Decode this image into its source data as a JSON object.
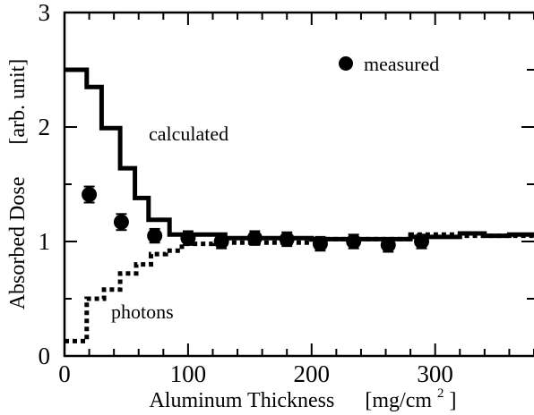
{
  "chart_data": {
    "type": "line",
    "xlabel": "Aluminum Thickness",
    "xunit_text": "[mg/cm",
    "xunit_sup": "2",
    "xunit_close": "]",
    "ylabel": "Absorbed Dose",
    "yunit": "[arb. unit]",
    "xlim": [
      0,
      380
    ],
    "ylim": [
      0,
      3
    ],
    "x_ticks": [
      0,
      100,
      200,
      300
    ],
    "x_tick_labels": [
      "0",
      "100",
      "200",
      "300"
    ],
    "y_ticks": [
      0,
      1,
      2,
      3
    ],
    "y_tick_labels": [
      "0",
      "1",
      "2",
      "3"
    ],
    "x_minor_step": 20,
    "y_minor_step": 0.5,
    "grid": false,
    "series": [
      {
        "name": "calculated",
        "style": "solid",
        "color": "#000000",
        "x": [
          0,
          18,
          18,
          30,
          30,
          45,
          45,
          57,
          57,
          68,
          68,
          85,
          85,
          130,
          130,
          200,
          200,
          280,
          280,
          320,
          320,
          340,
          340,
          360,
          360,
          380
        ],
        "y": [
          2.5,
          2.5,
          2.35,
          2.35,
          1.99,
          1.99,
          1.64,
          1.64,
          1.38,
          1.38,
          1.19,
          1.19,
          1.06,
          1.06,
          1.03,
          1.03,
          1.02,
          1.02,
          1.04,
          1.04,
          1.07,
          1.07,
          1.05,
          1.05,
          1.06,
          1.06
        ]
      },
      {
        "name": "photons",
        "style": "dashed",
        "color": "#000000",
        "x": [
          0,
          18,
          18,
          32,
          32,
          45,
          45,
          58,
          58,
          70,
          70,
          82,
          82,
          95,
          95,
          120,
          120,
          200,
          200,
          280,
          280,
          320,
          320,
          380
        ],
        "y": [
          0.13,
          0.13,
          0.5,
          0.5,
          0.58,
          0.58,
          0.72,
          0.72,
          0.8,
          0.8,
          0.89,
          0.89,
          0.92,
          0.92,
          0.98,
          0.98,
          0.99,
          0.99,
          1.02,
          1.02,
          1.06,
          1.06,
          1.05,
          1.05
        ]
      },
      {
        "name": "measured",
        "style": "markers",
        "color": "#000000",
        "x": [
          20,
          46,
          73,
          100,
          127,
          154,
          180,
          207,
          234,
          262,
          289
        ],
        "y": [
          1.41,
          1.17,
          1.05,
          1.03,
          1.0,
          1.03,
          1.02,
          0.98,
          1.0,
          0.97,
          1.0
        ],
        "yerr": [
          0.07,
          0.07,
          0.06,
          0.06,
          0.06,
          0.06,
          0.06,
          0.06,
          0.06,
          0.06,
          0.06
        ]
      }
    ],
    "annotations": {
      "calculated": "calculated",
      "photons": "photons",
      "measured_legend": "measured"
    }
  }
}
